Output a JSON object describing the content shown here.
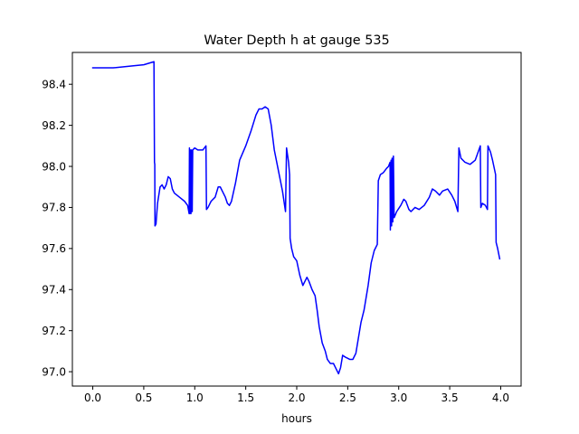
{
  "chart_data": {
    "type": "line",
    "title": "Water Depth h at gauge 535",
    "xlabel": "hours",
    "ylabel": "",
    "xlim": [
      -0.2,
      4.2
    ],
    "ylim": [
      96.93,
      98.555
    ],
    "xticks": [
      0.0,
      0.5,
      1.0,
      1.5,
      2.0,
      2.5,
      3.0,
      3.5,
      4.0
    ],
    "xtick_labels": [
      "0.0",
      "0.5",
      "1.0",
      "1.5",
      "2.0",
      "2.5",
      "3.0",
      "3.5",
      "4.0"
    ],
    "yticks": [
      97.0,
      97.2,
      97.4,
      97.6,
      97.8,
      98.0,
      98.2,
      98.4
    ],
    "ytick_labels": [
      "97.0",
      "97.2",
      "97.4",
      "97.6",
      "97.8",
      "98.0",
      "98.2",
      "98.4"
    ],
    "grid": false,
    "legend": "none",
    "series": [
      {
        "color": "#0000ff",
        "points": [
          [
            0.0,
            98.48
          ],
          [
            0.2,
            98.48
          ],
          [
            0.4,
            98.49
          ],
          [
            0.5,
            98.495
          ],
          [
            0.6,
            98.51
          ],
          [
            0.605,
            98.02
          ],
          [
            0.608,
            98.01
          ],
          [
            0.61,
            97.71
          ],
          [
            0.62,
            97.72
          ],
          [
            0.635,
            97.82
          ],
          [
            0.66,
            97.9
          ],
          [
            0.68,
            97.91
          ],
          [
            0.7,
            97.89
          ],
          [
            0.72,
            97.91
          ],
          [
            0.74,
            97.95
          ],
          [
            0.76,
            97.94
          ],
          [
            0.78,
            97.89
          ],
          [
            0.8,
            97.87
          ],
          [
            0.85,
            97.85
          ],
          [
            0.9,
            97.83
          ],
          [
            0.93,
            97.81
          ],
          [
            0.945,
            97.77
          ],
          [
            0.948,
            98.09
          ],
          [
            0.953,
            97.77
          ],
          [
            0.958,
            98.08
          ],
          [
            0.963,
            97.77
          ],
          [
            0.968,
            98.08
          ],
          [
            0.975,
            97.78
          ],
          [
            0.98,
            98.08
          ],
          [
            1.0,
            98.09
          ],
          [
            1.03,
            98.08
          ],
          [
            1.08,
            98.08
          ],
          [
            1.11,
            98.1
          ],
          [
            1.115,
            97.79
          ],
          [
            1.13,
            97.8
          ],
          [
            1.16,
            97.83
          ],
          [
            1.2,
            97.85
          ],
          [
            1.23,
            97.9
          ],
          [
            1.25,
            97.9
          ],
          [
            1.3,
            97.85
          ],
          [
            1.32,
            97.82
          ],
          [
            1.34,
            97.81
          ],
          [
            1.36,
            97.83
          ],
          [
            1.4,
            97.92
          ],
          [
            1.44,
            98.03
          ],
          [
            1.5,
            98.1
          ],
          [
            1.55,
            98.17
          ],
          [
            1.6,
            98.25
          ],
          [
            1.63,
            98.28
          ],
          [
            1.66,
            98.28
          ],
          [
            1.69,
            98.29
          ],
          [
            1.72,
            98.28
          ],
          [
            1.75,
            98.2
          ],
          [
            1.78,
            98.08
          ],
          [
            1.82,
            97.98
          ],
          [
            1.86,
            97.88
          ],
          [
            1.89,
            97.78
          ],
          [
            1.9,
            98.09
          ],
          [
            1.92,
            98.02
          ],
          [
            1.93,
            97.96
          ],
          [
            1.935,
            97.65
          ],
          [
            1.95,
            97.6
          ],
          [
            1.97,
            97.56
          ],
          [
            2.0,
            97.54
          ],
          [
            2.03,
            97.47
          ],
          [
            2.06,
            97.42
          ],
          [
            2.08,
            97.44
          ],
          [
            2.1,
            97.46
          ],
          [
            2.12,
            97.44
          ],
          [
            2.15,
            97.4
          ],
          [
            2.18,
            97.37
          ],
          [
            2.2,
            97.3
          ],
          [
            2.22,
            97.22
          ],
          [
            2.25,
            97.14
          ],
          [
            2.28,
            97.1
          ],
          [
            2.3,
            97.06
          ],
          [
            2.33,
            97.04
          ],
          [
            2.36,
            97.04
          ],
          [
            2.38,
            97.02
          ],
          [
            2.41,
            96.99
          ],
          [
            2.43,
            97.02
          ],
          [
            2.45,
            97.08
          ],
          [
            2.48,
            97.07
          ],
          [
            2.52,
            97.06
          ],
          [
            2.55,
            97.06
          ],
          [
            2.58,
            97.09
          ],
          [
            2.6,
            97.15
          ],
          [
            2.63,
            97.24
          ],
          [
            2.66,
            97.3
          ],
          [
            2.7,
            97.42
          ],
          [
            2.73,
            97.53
          ],
          [
            2.76,
            97.59
          ],
          [
            2.79,
            97.62
          ],
          [
            2.8,
            97.93
          ],
          [
            2.82,
            97.96
          ],
          [
            2.85,
            97.97
          ],
          [
            2.88,
            97.99
          ],
          [
            2.9,
            98.0
          ],
          [
            2.915,
            98.02
          ],
          [
            2.918,
            97.69
          ],
          [
            2.925,
            98.03
          ],
          [
            2.93,
            97.71
          ],
          [
            2.935,
            98.04
          ],
          [
            2.942,
            97.73
          ],
          [
            2.948,
            98.05
          ],
          [
            2.955,
            97.75
          ],
          [
            2.98,
            97.78
          ],
          [
            3.02,
            97.81
          ],
          [
            3.05,
            97.84
          ],
          [
            3.07,
            97.83
          ],
          [
            3.1,
            97.79
          ],
          [
            3.12,
            97.78
          ],
          [
            3.16,
            97.8
          ],
          [
            3.2,
            97.79
          ],
          [
            3.25,
            97.81
          ],
          [
            3.3,
            97.85
          ],
          [
            3.33,
            97.89
          ],
          [
            3.36,
            97.88
          ],
          [
            3.4,
            97.86
          ],
          [
            3.43,
            97.88
          ],
          [
            3.48,
            97.89
          ],
          [
            3.52,
            97.86
          ],
          [
            3.55,
            97.83
          ],
          [
            3.58,
            97.78
          ],
          [
            3.59,
            98.09
          ],
          [
            3.61,
            98.04
          ],
          [
            3.65,
            98.02
          ],
          [
            3.7,
            98.01
          ],
          [
            3.75,
            98.03
          ],
          [
            3.8,
            98.1
          ],
          [
            3.805,
            97.8
          ],
          [
            3.82,
            97.82
          ],
          [
            3.85,
            97.81
          ],
          [
            3.87,
            97.79
          ],
          [
            3.875,
            98.1
          ],
          [
            3.9,
            98.07
          ],
          [
            3.92,
            98.03
          ],
          [
            3.95,
            97.96
          ],
          [
            3.955,
            97.63
          ],
          [
            3.97,
            97.6
          ],
          [
            3.99,
            97.55
          ]
        ]
      }
    ]
  }
}
